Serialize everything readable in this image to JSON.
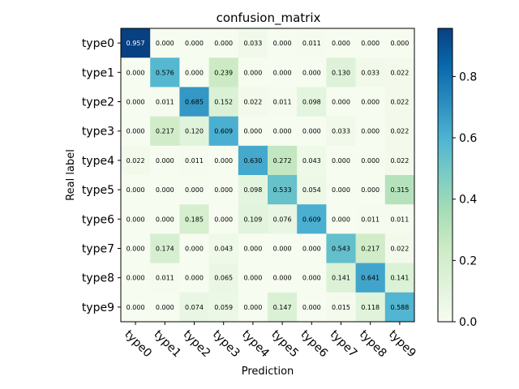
{
  "chart_data": {
    "type": "heatmap",
    "title": "confusion_matrix",
    "xlabel": "Prediction",
    "ylabel": "Real label",
    "x_categories": [
      "type0",
      "type1",
      "type2",
      "type3",
      "type4",
      "type5",
      "type6",
      "type7",
      "type8",
      "type9"
    ],
    "y_categories": [
      "type0",
      "type1",
      "type2",
      "type3",
      "type4",
      "type5",
      "type6",
      "type7",
      "type8",
      "type9"
    ],
    "values": [
      [
        0.957,
        0.0,
        0.0,
        0.0,
        0.033,
        0.0,
        0.011,
        0.0,
        0.0,
        0.0
      ],
      [
        0.0,
        0.576,
        0.0,
        0.239,
        0.0,
        0.0,
        0.0,
        0.13,
        0.033,
        0.022
      ],
      [
        0.0,
        0.011,
        0.685,
        0.152,
        0.022,
        0.011,
        0.098,
        0.0,
        0.0,
        0.022
      ],
      [
        0.0,
        0.217,
        0.12,
        0.609,
        0.0,
        0.0,
        0.0,
        0.033,
        0.0,
        0.022
      ],
      [
        0.022,
        0.0,
        0.011,
        0.0,
        0.63,
        0.272,
        0.043,
        0.0,
        0.0,
        0.022
      ],
      [
        0.0,
        0.0,
        0.0,
        0.0,
        0.098,
        0.533,
        0.054,
        0.0,
        0.0,
        0.315
      ],
      [
        0.0,
        0.0,
        0.185,
        0.0,
        0.109,
        0.076,
        0.609,
        0.0,
        0.011,
        0.011
      ],
      [
        0.0,
        0.174,
        0.0,
        0.043,
        0.0,
        0.0,
        0.0,
        0.543,
        0.217,
        0.022
      ],
      [
        0.0,
        0.011,
        0.0,
        0.065,
        0.0,
        0.0,
        0.0,
        0.141,
        0.641,
        0.141
      ],
      [
        0.0,
        0.0,
        0.074,
        0.059,
        0.0,
        0.147,
        0.0,
        0.015,
        0.118,
        0.588
      ]
    ],
    "value_labels": [
      [
        "0.957",
        "0.000",
        "0.000",
        "0.000",
        "0.033",
        "0.000",
        "0.011",
        "0.000",
        "0.000",
        "0.000"
      ],
      [
        "0.000",
        "0.576",
        "0.000",
        "0.239",
        "0.000",
        "0.000",
        "0.000",
        "0.130",
        "0.033",
        "0.022"
      ],
      [
        "0.000",
        "0.011",
        "0.685",
        "0.152",
        "0.022",
        "0.011",
        "0.098",
        "0.000",
        "0.000",
        "0.022"
      ],
      [
        "0.000",
        "0.217",
        "0.120",
        "0.609",
        "0.000",
        "0.000",
        "0.000",
        "0.033",
        "0.000",
        "0.022"
      ],
      [
        "0.022",
        "0.000",
        "0.011",
        "0.000",
        "0.630",
        "0.272",
        "0.043",
        "0.000",
        "0.000",
        "0.022"
      ],
      [
        "0.000",
        "0.000",
        "0.000",
        "0.000",
        "0.098",
        "0.533",
        "0.054",
        "0.000",
        "0.000",
        "0.315"
      ],
      [
        "0.000",
        "0.000",
        "0.185",
        "0.000",
        "0.109",
        "0.076",
        "0.609",
        "0.000",
        "0.011",
        "0.011"
      ],
      [
        "0.000",
        "0.174",
        "0.000",
        "0.043",
        "0.000",
        "0.000",
        "0.000",
        "0.543",
        "0.217",
        "0.022"
      ],
      [
        "0.000",
        "0.011",
        "0.000",
        "0.065",
        "0.000",
        "0.000",
        "0.000",
        "0.141",
        "0.641",
        "0.141"
      ],
      [
        "0.000",
        "0.000",
        "0.074",
        "0.059",
        "0.000",
        "0.147",
        "0.000",
        "0.015",
        "0.118",
        "0.588"
      ]
    ],
    "colormap": "GnBu",
    "colorbar": {
      "range": [
        0.0,
        0.957
      ],
      "ticks": [
        0.0,
        0.2,
        0.4,
        0.6,
        0.8
      ],
      "tick_labels": [
        "0.0",
        "0.2",
        "0.4",
        "0.6",
        "0.8"
      ]
    },
    "grid": false,
    "legend": "colorbar-right"
  }
}
